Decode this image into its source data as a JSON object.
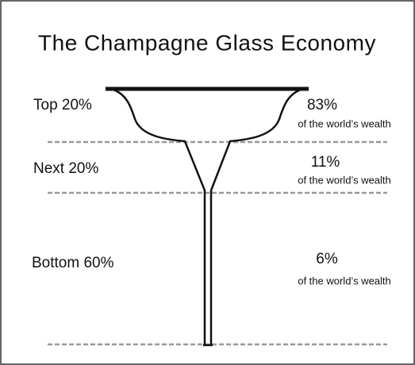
{
  "title": "The Champagne Glass Economy",
  "tiers": [
    {
      "label": "Top 20%",
      "share": "83%",
      "caption": "of the world’s wealth"
    },
    {
      "label": "Next 20%",
      "share": "11%",
      "caption": "of the world’s wealth"
    },
    {
      "label": "Bottom 60%",
      "share": "6%",
      "caption": "of the world’s wealth"
    }
  ]
}
